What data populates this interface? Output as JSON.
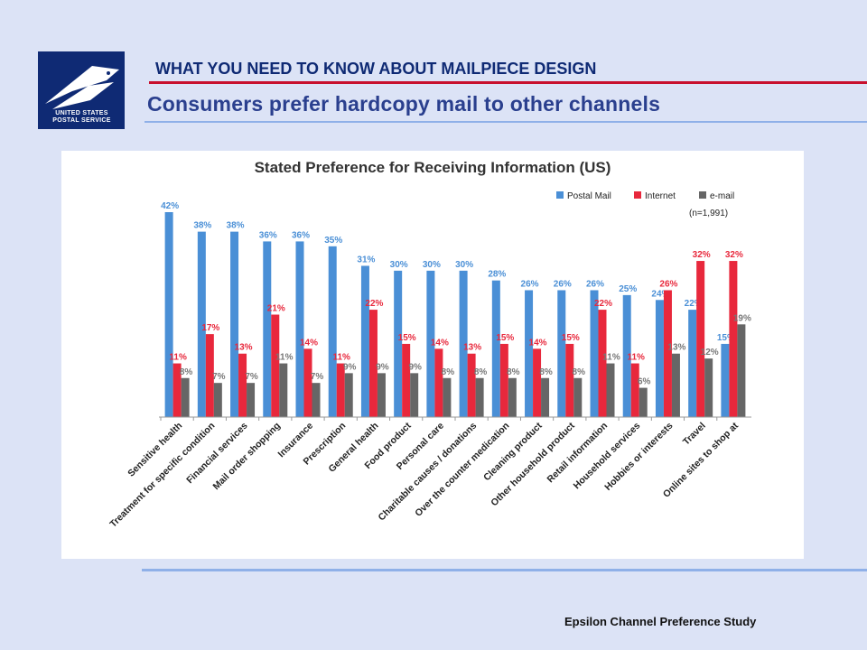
{
  "header": {
    "title": "WHAT YOU NEED TO KNOW ABOUT MAILPIECE DESIGN",
    "subtitle": "Consumers prefer hardcopy mail to other channels",
    "logo_text_line1": "UNITED STATES",
    "logo_text_line2": "POSTAL SERVICE"
  },
  "footer": {
    "source": "Epsilon Channel Preference Study"
  },
  "colors": {
    "postal_mail": "#4a8fd6",
    "internet": "#e8283c",
    "email": "#666666",
    "brand_blue": "#0f2a74",
    "brand_red": "#c8102e"
  },
  "chart_data": {
    "type": "bar",
    "title": "Stated Preference for Receiving Information (US)",
    "note": "(n=1,991)",
    "legend_position": "top-right",
    "ylim": [
      0,
      42
    ],
    "grid": false,
    "categories": [
      "Sensitive health",
      "Treatment for specific condition",
      "Financial services",
      "Mail order shopping",
      "Insurance",
      "Prescription",
      "General health",
      "Food product",
      "Personal care",
      "Charitable causes / donations",
      "Over the counter medication",
      "Cleaning product",
      "Other household product",
      "Retail information",
      "Household services",
      "Hobbies or interests",
      "Travel",
      "Online sites to shop at"
    ],
    "series": [
      {
        "name": "Postal Mail",
        "color": "#4a8fd6",
        "values": [
          42,
          38,
          38,
          36,
          36,
          35,
          31,
          30,
          30,
          30,
          28,
          26,
          26,
          26,
          25,
          24,
          22,
          15
        ]
      },
      {
        "name": "Internet",
        "color": "#e8283c",
        "values": [
          11,
          17,
          13,
          21,
          14,
          11,
          22,
          15,
          14,
          13,
          15,
          14,
          15,
          22,
          11,
          26,
          32,
          32
        ]
      },
      {
        "name": "e-mail",
        "color": "#666666",
        "values": [
          8,
          7,
          7,
          11,
          7,
          9,
          9,
          9,
          8,
          8,
          8,
          8,
          8,
          11,
          6,
          13,
          12,
          19
        ]
      }
    ]
  }
}
